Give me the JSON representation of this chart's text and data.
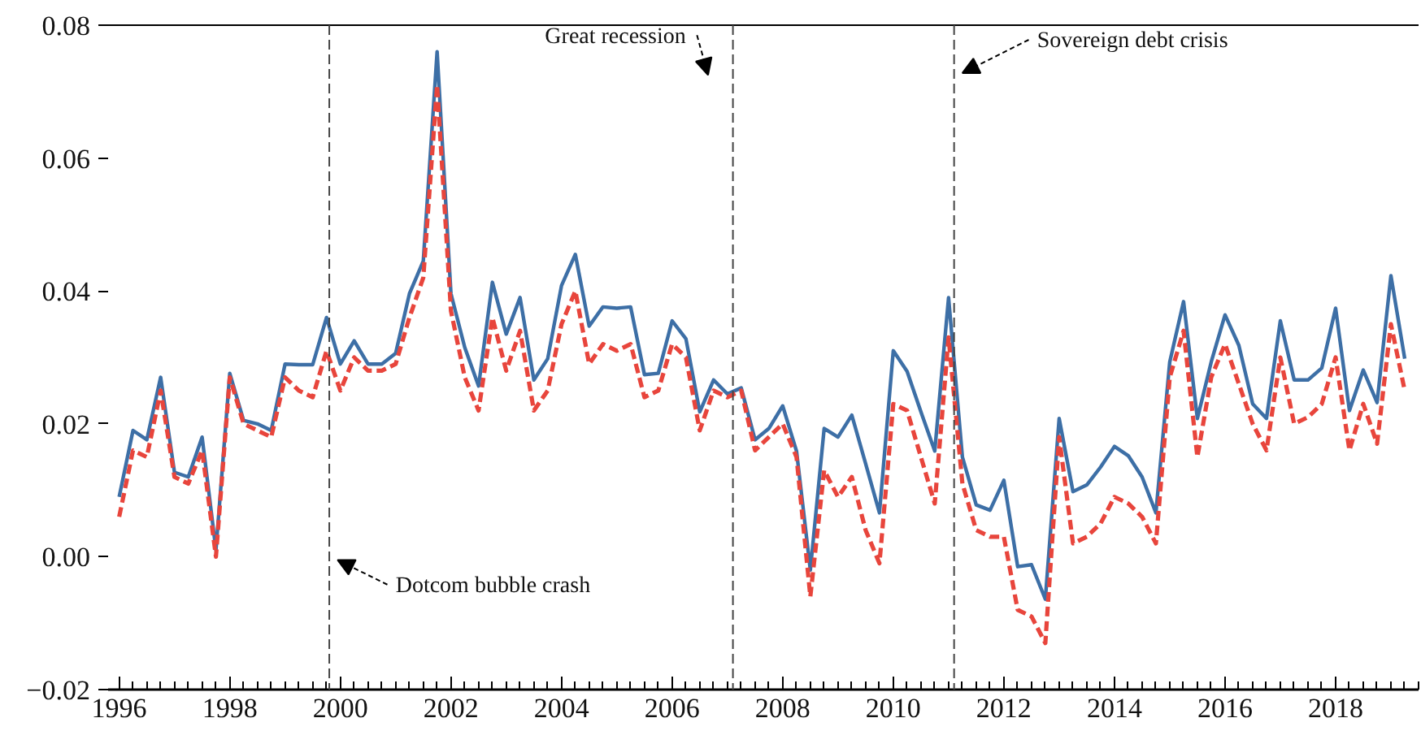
{
  "chart_data": {
    "type": "line",
    "x": [
      1996.0,
      1996.25,
      1996.5,
      1996.75,
      1997.0,
      1997.25,
      1997.5,
      1997.75,
      1998.0,
      1998.25,
      1998.5,
      1998.75,
      1999.0,
      1999.25,
      1999.5,
      1999.75,
      2000.0,
      2000.25,
      2000.5,
      2000.75,
      2001.0,
      2001.25,
      2001.5,
      2001.75,
      2002.0,
      2002.25,
      2002.5,
      2002.75,
      2003.0,
      2003.25,
      2003.5,
      2003.75,
      2004.0,
      2004.25,
      2004.5,
      2004.75,
      2005.0,
      2005.25,
      2005.5,
      2005.75,
      2006.0,
      2006.25,
      2006.5,
      2006.75,
      2007.0,
      2007.25,
      2007.5,
      2007.75,
      2008.0,
      2008.25,
      2008.5,
      2008.75,
      2009.0,
      2009.25,
      2009.5,
      2009.75,
      2010.0,
      2010.25,
      2010.5,
      2010.75,
      2011.0,
      2011.25,
      2011.5,
      2011.75,
      2012.0,
      2012.25,
      2012.5,
      2012.75,
      2013.0,
      2013.25,
      2013.5,
      2013.75,
      2014.0,
      2014.25,
      2014.5,
      2014.75,
      2015.0,
      2015.25,
      2015.5,
      2015.75,
      2016.0,
      2016.25,
      2016.5,
      2016.75,
      2017.0,
      2017.25,
      2017.5,
      2017.75,
      2018.0,
      2018.25,
      2018.5,
      2018.75,
      2019.0,
      2019.25
    ],
    "series": [
      {
        "color": "#3d6fa6",
        "line_style": "solid",
        "values": [
          0.009,
          0.019,
          0.0176,
          0.027,
          0.0127,
          0.012,
          0.018,
          0.001,
          0.0276,
          0.0205,
          0.02,
          0.019,
          0.029,
          0.0289,
          0.0289,
          0.036,
          0.029,
          0.0325,
          0.029,
          0.029,
          0.0306,
          0.0396,
          0.0445,
          0.076,
          0.0396,
          0.0315,
          0.0257,
          0.0413,
          0.0335,
          0.039,
          0.0266,
          0.0298,
          0.0408,
          0.0455,
          0.0347,
          0.0376,
          0.0374,
          0.0376,
          0.0274,
          0.0276,
          0.0355,
          0.0328,
          0.0218,
          0.0266,
          0.0245,
          0.0254,
          0.0176,
          0.0193,
          0.0227,
          0.0159,
          -0.002,
          0.0193,
          0.018,
          0.0213,
          0.014,
          0.0066,
          0.031,
          0.0279,
          0.0218,
          0.0159,
          0.039,
          0.015,
          0.0078,
          0.007,
          0.0115,
          -0.0015,
          -0.0012,
          -0.0064,
          0.0208,
          0.0098,
          0.0108,
          0.0135,
          0.0166,
          0.0152,
          0.012,
          0.0066,
          0.0293,
          0.0384,
          0.0208,
          0.0293,
          0.0364,
          0.0318,
          0.023,
          0.0208,
          0.0355,
          0.0266,
          0.0266,
          0.0284,
          0.0374,
          0.022,
          0.0281,
          0.0232,
          0.0423,
          0.0298
        ]
      },
      {
        "color": "#e8453c",
        "line_style": "dashed",
        "values": [
          0.006,
          0.016,
          0.015,
          0.025,
          0.012,
          0.011,
          0.016,
          0.0,
          0.027,
          0.02,
          0.019,
          0.018,
          0.027,
          0.025,
          0.024,
          0.031,
          0.025,
          0.03,
          0.028,
          0.028,
          0.029,
          0.036,
          0.042,
          0.071,
          0.037,
          0.027,
          0.022,
          0.036,
          0.028,
          0.034,
          0.022,
          0.025,
          0.035,
          0.04,
          0.029,
          0.032,
          0.031,
          0.032,
          0.024,
          0.025,
          0.032,
          0.03,
          0.019,
          0.025,
          0.024,
          0.025,
          0.016,
          0.018,
          0.02,
          0.015,
          -0.006,
          0.013,
          0.009,
          0.012,
          0.004,
          -0.001,
          0.023,
          0.022,
          0.015,
          0.008,
          0.033,
          0.011,
          0.004,
          0.003,
          0.003,
          -0.008,
          -0.009,
          -0.013,
          0.018,
          0.002,
          0.003,
          0.005,
          0.009,
          0.008,
          0.006,
          0.002,
          0.027,
          0.034,
          0.015,
          0.027,
          0.032,
          0.026,
          0.02,
          0.016,
          0.03,
          0.02,
          0.021,
          0.023,
          0.03,
          0.016,
          0.023,
          0.017,
          0.035,
          0.025
        ]
      }
    ],
    "xlim": [
      1995.8,
      2019.5
    ],
    "xticks": [
      1996,
      1998,
      2000,
      2002,
      2004,
      2006,
      2008,
      2010,
      2012,
      2014,
      2016,
      2018
    ],
    "ylim": [
      -0.02,
      0.08
    ],
    "yticks": [
      -0.02,
      {
        "value": 0,
        "label": "0.00"
      },
      0.02,
      0.04,
      0.06,
      0.08
    ],
    "ref_lines": [
      {
        "axis": "x",
        "value": 1999.8,
        "label": "Dotcom bubble crash",
        "color": "#444444",
        "line_style": "dashed"
      },
      {
        "axis": "x",
        "value": 2007.1,
        "label": "Great recession",
        "color": "#444444",
        "line_style": "dashed"
      },
      {
        "axis": "x",
        "value": 2011.1,
        "label": "Sovereign debt crisis",
        "color": "#444444",
        "line_style": "dashed"
      }
    ],
    "grid": false,
    "marker": "none"
  }
}
